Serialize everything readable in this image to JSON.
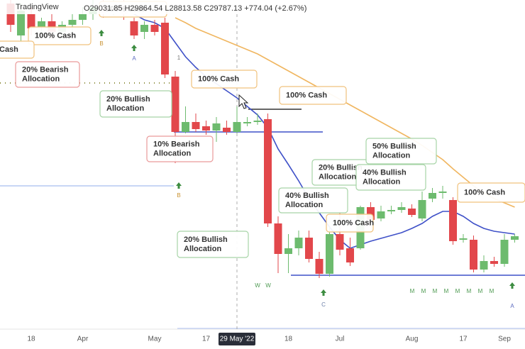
{
  "chart_data": {
    "type": "candlestick",
    "header": {
      "brand": "TradingView",
      "ohlc": "O29031.85 H29864.54 L28813.58 C29787.13 +774.04 (+2.67%)"
    },
    "categories": [
      null,
      null,
      "18",
      null,
      null,
      null,
      null,
      "Apr",
      null,
      null,
      null,
      null,
      null,
      null,
      "May",
      null,
      null,
      null,
      null,
      "17",
      null,
      null,
      "29 May '22",
      null,
      null,
      null,
      null,
      "18",
      null,
      null,
      null,
      null,
      "Jul",
      null,
      null,
      null,
      null,
      null,
      null,
      "Aug",
      null,
      null,
      null,
      null,
      "17",
      null,
      null,
      null,
      "Sep",
      null
    ],
    "open": [
      38050,
      35800,
      37300,
      36400,
      36800,
      36050,
      36550,
      36900,
      37300,
      37800,
      37550,
      37900,
      36800,
      36050,
      36550,
      36700,
      32900,
      29000,
      29700,
      29400,
      29100,
      29300,
      29000,
      29600,
      29700,
      29900,
      22550,
      20400,
      20800,
      21550,
      20050,
      19000,
      21800,
      20800,
      20800,
      23700,
      22900,
      23400,
      23500,
      23600,
      22900,
      24300,
      24700,
      24200,
      21400,
      21400,
      19300,
      19900,
      19700,
      21400
    ],
    "high": [
      38300,
      38050,
      37800,
      37050,
      37300,
      36800,
      37300,
      37800,
      38300,
      38300,
      38300,
      38300,
      37050,
      36800,
      36900,
      37050,
      33300,
      30800,
      30300,
      29800,
      30050,
      29800,
      30800,
      30050,
      30300,
      30300,
      23050,
      21800,
      22050,
      22050,
      20550,
      22300,
      23300,
      21550,
      23800,
      24050,
      23800,
      23800,
      24050,
      23900,
      24800,
      25050,
      25200,
      24400,
      21800,
      21700,
      20300,
      20200,
      21800,
      21800
    ],
    "low": [
      36050,
      35300,
      35800,
      35900,
      35550,
      35550,
      36050,
      36550,
      36900,
      37050,
      37200,
      36900,
      35550,
      35550,
      35800,
      32800,
      26800,
      28900,
      29000,
      28800,
      28300,
      28800,
      28900,
      29400,
      29500,
      22300,
      19050,
      19050,
      20300,
      19800,
      18700,
      18800,
      20300,
      19550,
      20700,
      22550,
      22700,
      23200,
      23300,
      23000,
      22700,
      24050,
      24300,
      21050,
      21200,
      19100,
      19100,
      19500,
      19500,
      21200
    ],
    "close": [
      36550,
      37550,
      36300,
      36800,
      36050,
      36550,
      36900,
      37300,
      37800,
      37400,
      37900,
      37300,
      35800,
      36550,
      36050,
      33050,
      29000,
      29700,
      29200,
      29100,
      29600,
      29000,
      29700,
      29700,
      29800,
      22550,
      20400,
      20800,
      21550,
      20050,
      19000,
      21800,
      20700,
      19800,
      23700,
      22800,
      23400,
      23500,
      23700,
      23150,
      24200,
      24700,
      24800,
      21300,
      21500,
      19300,
      19900,
      19700,
      21400,
      21650
    ],
    "up_color": "#6dbb6e",
    "down_color": "#e2474b",
    "lines": [
      {
        "color": "#3f51c8",
        "values": [
          null,
          null,
          null,
          null,
          null,
          null,
          null,
          null,
          null,
          null,
          38050,
          37800,
          37300,
          36900,
          36700,
          36300,
          35300,
          34300,
          33550,
          32900,
          32400,
          31900,
          31400,
          30800,
          30200,
          29300,
          27800,
          26700,
          25550,
          24300,
          23300,
          22300,
          21400,
          20800,
          21050,
          21300,
          21500,
          21700,
          21900,
          22200,
          22550,
          23050,
          23400,
          23400,
          23050,
          22550,
          22200,
          22000,
          21900,
          21800
        ]
      },
      {
        "color": "#f0b660",
        "values": [
          null,
          null,
          null,
          null,
          null,
          null,
          null,
          null,
          null,
          null,
          null,
          null,
          null,
          null,
          null,
          null,
          37050,
          36700,
          36300,
          36000,
          35700,
          35400,
          35100,
          34800,
          34500,
          34100,
          33700,
          33300,
          32900,
          32500,
          32100,
          31700,
          31300,
          30900,
          30500,
          30100,
          29700,
          29300,
          28900,
          28500,
          28050,
          27550,
          27050,
          26400,
          25800,
          25200,
          24700,
          24300,
          24000,
          23700
        ]
      }
    ],
    "levels": [
      {
        "value": 29000,
        "color": "#3f51c8"
      },
      {
        "value": 30600,
        "color": "#333333"
      },
      {
        "value": 18900,
        "color": "#3f51c8"
      },
      {
        "value": 25200,
        "color": "#b6c8f2"
      },
      {
        "value": 15150,
        "color": "#c6d4f4"
      },
      {
        "value": 32450,
        "color": "#8c8c3c"
      }
    ],
    "annotations": [
      {
        "lines": [
          "100% Cash"
        ],
        "color": "#f1c27d"
      },
      {
        "lines": [
          "Cash"
        ],
        "color": "#f1c27d"
      },
      {
        "lines": [
          "20% Bearish",
          "Allocation"
        ],
        "color": "#ea9a9a"
      },
      {
        "lines": [
          "100% Cash"
        ],
        "color": "#f1c27d"
      },
      {
        "lines": [
          "100% Cash"
        ],
        "color": "#f1c27d"
      },
      {
        "lines": [
          "20% Bullish",
          "Allocation"
        ],
        "color": "#a6d4a6"
      },
      {
        "lines": [
          "10% Bearish",
          "Allocation"
        ],
        "color": "#ea9a9a"
      },
      {
        "lines": [
          "20% Bullish",
          "Allocation"
        ],
        "color": "#a6d4a6"
      },
      {
        "lines": [
          "50% Bullish",
          "Allocation"
        ],
        "color": "#a6d4a6"
      },
      {
        "lines": [
          "40% Bullish",
          "Allocation"
        ],
        "color": "#a6d4a6"
      },
      {
        "lines": [
          "40% Bullish",
          "Allocation"
        ],
        "color": "#a6d4a6"
      },
      {
        "lines": [
          "100% Cash"
        ],
        "color": "#f1c27d"
      },
      {
        "lines": [
          "20% Bullish",
          "Allocation"
        ],
        "color": "#a6d4a6"
      },
      {
        "lines": [
          "100% Cash"
        ],
        "color": "#f1c27d"
      },
      {
        "lines": [
          "100% Cash"
        ],
        "color": "#f1c27d"
      }
    ],
    "signals": [
      {
        "label": "B",
        "color": "#c8902e"
      },
      {
        "label": "A",
        "color": "#5c6bc0"
      },
      {
        "label": "1",
        "color": "#777777"
      },
      {
        "label": "B",
        "color": "#c8902e"
      },
      {
        "label": "W",
        "color": "#4e9a52"
      },
      {
        "label": "W",
        "color": "#4e9a52"
      },
      {
        "label": "C",
        "color": "#6b7fa8"
      },
      {
        "label": "M",
        "color": "#4e9a52"
      },
      {
        "label": "M",
        "color": "#4e9a52"
      },
      {
        "label": "M",
        "color": "#4e9a52"
      },
      {
        "label": "M",
        "color": "#4e9a52"
      },
      {
        "label": "M",
        "color": "#4e9a52"
      },
      {
        "label": "M",
        "color": "#4e9a52"
      },
      {
        "label": "M",
        "color": "#4e9a52"
      },
      {
        "label": "M",
        "color": "#4e9a52"
      },
      {
        "label": "A",
        "color": "#5c6bc0"
      }
    ],
    "crosshair_category": 22,
    "ylim": [
      13700,
      38300
    ]
  }
}
